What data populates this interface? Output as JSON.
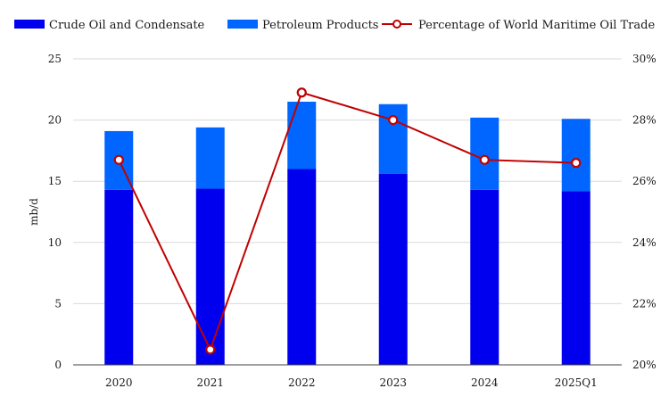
{
  "chart_data": {
    "type": "bar",
    "stacked": true,
    "title": "",
    "categories": [
      "2020",
      "2021",
      "2022",
      "2023",
      "2024",
      "2025Q1"
    ],
    "series": [
      {
        "name": "Crude Oil and Condensate",
        "type": "bar",
        "axis": "left",
        "color": "#0000ee",
        "values": [
          14.3,
          14.4,
          16.0,
          15.6,
          14.3,
          14.2
        ]
      },
      {
        "name": "Petroleum Products",
        "type": "bar",
        "axis": "left",
        "color": "#0066ff",
        "values": [
          4.8,
          5.0,
          5.5,
          5.7,
          5.9,
          5.9
        ]
      },
      {
        "name": "Percentage of World Maritime Oil Trade",
        "type": "line",
        "axis": "right",
        "color": "#c00000",
        "values": [
          26.7,
          20.5,
          28.9,
          28.0,
          26.7,
          26.6
        ]
      }
    ],
    "ylabel": "mb/d",
    "xlabel": "",
    "y_left": {
      "min": 0,
      "max": 25,
      "ticks": [
        0,
        5,
        10,
        15,
        20,
        25
      ],
      "tick_labels": [
        "0",
        "5",
        "10",
        "15",
        "20",
        "25"
      ]
    },
    "y_right": {
      "min": 20,
      "max": 30,
      "ticks": [
        20,
        22,
        24,
        26,
        28,
        30
      ],
      "tick_labels": [
        "20%",
        "22%",
        "24%",
        "26%",
        "28%",
        "30%"
      ]
    },
    "grid": true,
    "legend_position": "top"
  }
}
